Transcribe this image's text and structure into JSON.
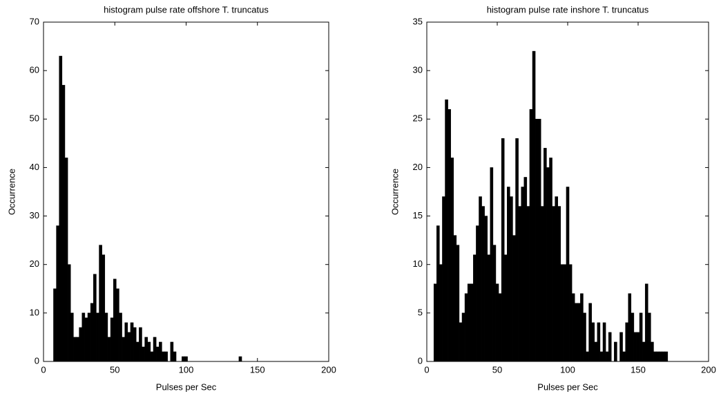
{
  "chart_data": [
    {
      "type": "histogram",
      "title": "histogram pulse rate offshore T. truncatus",
      "xlabel": "Pulses per Sec",
      "ylabel": "Occurrence",
      "color": "#000000",
      "bins": [
        7,
        9,
        11,
        13,
        15,
        17,
        19,
        21,
        23,
        25,
        27,
        29,
        31,
        33,
        35,
        37,
        39,
        41,
        43,
        45,
        47,
        49,
        51,
        53,
        55,
        57,
        59,
        61,
        63,
        65,
        67,
        69,
        71,
        73,
        75,
        77,
        79,
        81,
        83,
        85,
        87,
        89,
        91,
        93,
        95,
        97,
        99,
        101,
        103,
        105,
        107,
        109,
        111,
        113,
        115,
        117,
        119,
        121,
        123,
        125,
        127,
        129,
        131,
        133,
        135,
        137,
        139
      ],
      "values": [
        15,
        28,
        63,
        57,
        42,
        20,
        10,
        5,
        5,
        7,
        10,
        9,
        10,
        12,
        18,
        10,
        24,
        22,
        10,
        5,
        9,
        17,
        15,
        10,
        5,
        8,
        6,
        8,
        7,
        4,
        7,
        3,
        5,
        4,
        2,
        5,
        3,
        4,
        2,
        2,
        0,
        4,
        2,
        0,
        0,
        1,
        1,
        0,
        0,
        0,
        0,
        0,
        0,
        0,
        0,
        0,
        0,
        0,
        0,
        0,
        0,
        0,
        0,
        0,
        0,
        1
      ],
      "xlim": [
        0,
        200
      ],
      "xticks": [
        0,
        50,
        100,
        150,
        200
      ],
      "ylim": [
        0,
        70
      ],
      "yticks": [
        0,
        10,
        20,
        30,
        40,
        50,
        60,
        70
      ]
    },
    {
      "type": "histogram",
      "title": "histogram pulse rate inshore T. truncatus",
      "xlabel": "Pulses per Sec",
      "ylabel": "Occurrence",
      "color": "#000000",
      "bins": [
        5,
        7,
        9,
        11,
        13,
        15,
        17,
        19,
        21,
        23,
        25,
        27,
        29,
        31,
        33,
        35,
        37,
        39,
        41,
        43,
        45,
        47,
        49,
        51,
        53,
        55,
        57,
        59,
        61,
        63,
        65,
        67,
        69,
        71,
        73,
        75,
        77,
        79,
        81,
        83,
        85,
        87,
        89,
        91,
        93,
        95,
        97,
        99,
        101,
        103,
        105,
        107,
        109,
        111,
        113,
        115,
        117,
        119,
        121,
        123,
        125,
        127,
        129,
        131,
        133,
        135,
        137,
        139,
        141,
        143,
        145,
        147,
        149,
        151,
        153,
        155,
        157,
        159,
        161,
        163,
        165,
        167,
        169,
        171
      ],
      "values": [
        8,
        14,
        10,
        17,
        27,
        26,
        21,
        13,
        12,
        4,
        5,
        7,
        8,
        8,
        11,
        14,
        17,
        16,
        15,
        11,
        20,
        12,
        8,
        7,
        23,
        11,
        18,
        17,
        13,
        23,
        16,
        18,
        19,
        16,
        26,
        32,
        25,
        25,
        16,
        22,
        20,
        21,
        16,
        17,
        16,
        10,
        10,
        18,
        10,
        7,
        6,
        6,
        7,
        5,
        1,
        6,
        4,
        2,
        4,
        1,
        4,
        1,
        3,
        0,
        2,
        0,
        3,
        1,
        4,
        7,
        5,
        3,
        3,
        5,
        2,
        8,
        5,
        2,
        1,
        1,
        1,
        1,
        1
      ],
      "xlim": [
        0,
        200
      ],
      "xticks": [
        0,
        50,
        100,
        150,
        200
      ],
      "ylim": [
        0,
        35
      ],
      "yticks": [
        0,
        5,
        10,
        15,
        20,
        25,
        30,
        35
      ]
    }
  ]
}
